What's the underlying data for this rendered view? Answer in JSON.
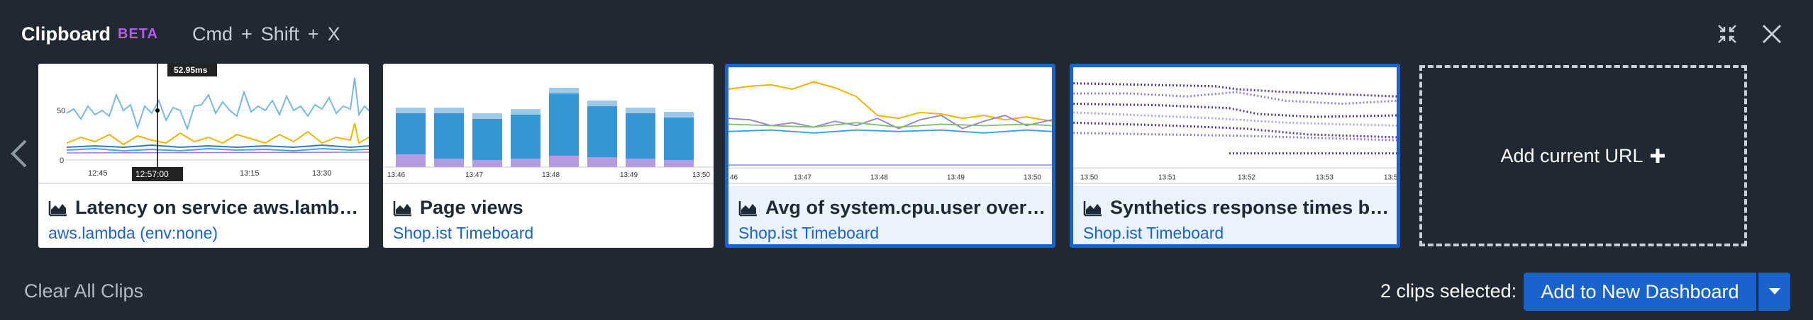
{
  "header": {
    "title": "Clipboard",
    "badge": "BETA",
    "shortcut": {
      "key1": "Cmd",
      "key2": "Shift",
      "key3": "X",
      "sep": "+"
    }
  },
  "cards": [
    {
      "title": "Latency on service aws.lamb…",
      "subtitle": "aws.lambda (env:none)",
      "selected": false,
      "y_ticks": [
        "50",
        "0"
      ],
      "x_ticks": [
        "12:45",
        "13:15",
        "13:30"
      ],
      "tooltip": "52.95ms",
      "cursor_time": "12:57:00"
    },
    {
      "title": "Page views",
      "subtitle": "Shop.ist Timeboard",
      "selected": false,
      "x_ticks": [
        "13:46",
        "13:47",
        "13:48",
        "13:49",
        "13:50"
      ]
    },
    {
      "title": "Avg of system.cpu.user over …",
      "subtitle": "Shop.ist Timeboard",
      "selected": true,
      "x_ticks": [
        "46",
        "13:47",
        "13:48",
        "13:49",
        "13:50"
      ]
    },
    {
      "title": "Synthetics response times b…",
      "subtitle": "Shop.ist Timeboard",
      "selected": true,
      "x_ticks": [
        "13:50",
        "13:51",
        "13:52",
        "13:53",
        "13:5"
      ]
    }
  ],
  "add_url": {
    "label": "Add current URL"
  },
  "footer": {
    "clear_label": "Clear All Clips",
    "selected_text": "2 clips selected:",
    "add_button": "Add to New Dashboard"
  },
  "colors": {
    "accent": "#1a63cc",
    "badge": "#b65cf0",
    "bg": "#202833"
  },
  "icons": [
    "collapse-icon",
    "close-icon",
    "chevron-left-icon",
    "area-chart-icon",
    "plus-icon",
    "caret-down-icon"
  ]
}
